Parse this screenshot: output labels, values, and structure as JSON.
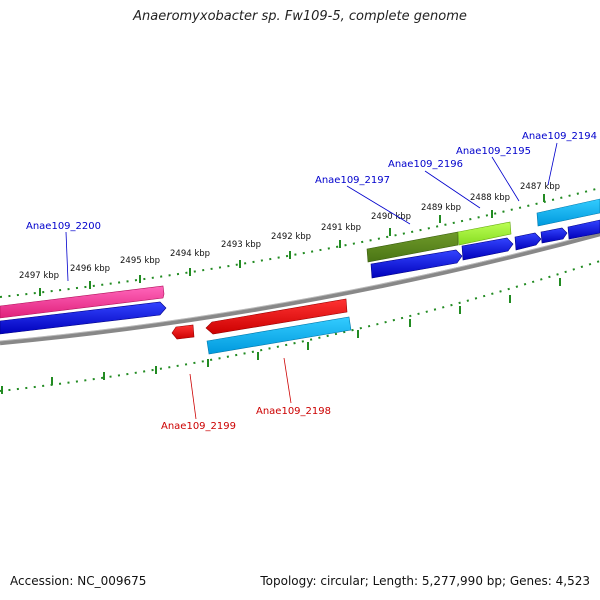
{
  "title": "Anaeromyxobacter sp. Fw109-5, complete genome",
  "accession": "Accession: NC_009675",
  "summary": "Topology: circular; Length: 5,277,990 bp; Genes: 4,523",
  "colors": {
    "tick": "#228b22",
    "backbone": "#888888",
    "forward_label": "#0000cc",
    "reverse_label": "#cc0000",
    "blue_cds": "#0000ee",
    "pink_cds": "#ff3399",
    "red_cds": "#ee0000",
    "cyan_cds": "#00bbee",
    "olive_cds": "#5a8a1a",
    "lime_cds": "#99ee33"
  },
  "kbp_labels": [
    "2497 kbp",
    "2496 kbp",
    "2495 kbp",
    "2494 kbp",
    "2493 kbp",
    "2492 kbp",
    "2491 kbp",
    "2490 kbp",
    "2489 kbp",
    "2488 kbp",
    "2487 kbp"
  ],
  "gene_labels": {
    "anae_2200": "Anae109_2200",
    "anae_2197": "Anae109_2197",
    "anae_2196": "Anae109_2196",
    "anae_2195": "Anae109_2195",
    "anae_2194": "Anae109_2194",
    "anae_2199": "Anae109_2199",
    "anae_2198": "Anae109_2198"
  }
}
